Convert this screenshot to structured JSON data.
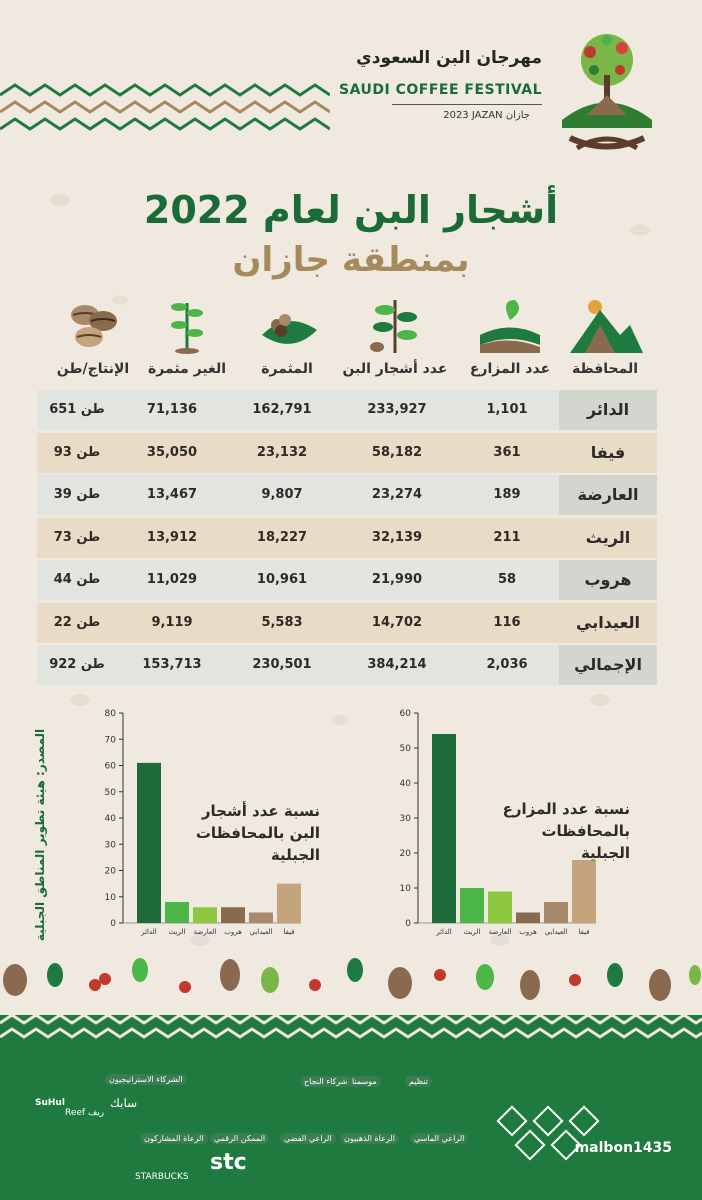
{
  "header": {
    "logo_arabic": "مهرجان البن السعودي",
    "logo_english": "SAUDI COFFEE FESTIVAL",
    "logo_sub": "2023 JAZAN  جازان"
  },
  "title": {
    "line1": "أشجار البن لعام 2022",
    "line2": "بمنطقة جازان"
  },
  "table": {
    "columns": [
      "المحافظة",
      "عدد المزارع",
      "عدد أشجار البن",
      "المثمرة",
      "الغير مثمرة",
      "الإنتاج/طن"
    ],
    "rows": [
      {
        "gov": "الدائر",
        "farms": "1,101",
        "trees": "233,927",
        "fruitful": "162,791",
        "nonfruitful": "71,136",
        "production": "651 طن"
      },
      {
        "gov": "فيفا",
        "farms": "361",
        "trees": "58,182",
        "fruitful": "23,132",
        "nonfruitful": "35,050",
        "production": "93 طن"
      },
      {
        "gov": "العارضة",
        "farms": "189",
        "trees": "23,274",
        "fruitful": "9,807",
        "nonfruitful": "13,467",
        "production": "39 طن"
      },
      {
        "gov": "الريث",
        "farms": "211",
        "trees": "32,139",
        "fruitful": "18,227",
        "nonfruitful": "13,912",
        "production": "73 طن"
      },
      {
        "gov": "هروب",
        "farms": "58",
        "trees": "21,990",
        "fruitful": "10,961",
        "nonfruitful": "11,029",
        "production": "44 طن"
      },
      {
        "gov": "العيدابي",
        "farms": "116",
        "trees": "14,702",
        "fruitful": "5,583",
        "nonfruitful": "9,119",
        "production": "22 طن"
      },
      {
        "gov": "الإجمالي",
        "farms": "2,036",
        "trees": "384,214",
        "fruitful": "230,501",
        "nonfruitful": "153,713",
        "production": "922 طن"
      }
    ]
  },
  "source": "المصدر: هيئة تطوير المناطق الجبلية",
  "chart_data": [
    {
      "type": "bar",
      "title": "نسبة عدد أشجار البن بالمحافظات الجبلية",
      "categories": [
        "الدائر",
        "الريث",
        "العارضة",
        "هروب",
        "العيدابي",
        "فيفا"
      ],
      "values": [
        61,
        8,
        6,
        6,
        4,
        15
      ],
      "colors": [
        "#1e6b3a",
        "#4cb648",
        "#8dc63f",
        "#8a6a4e",
        "#a8896a",
        "#c4a47c"
      ],
      "ylim": [
        0,
        80
      ],
      "yticks": [
        0,
        10,
        20,
        30,
        40,
        50,
        60,
        70,
        80
      ]
    },
    {
      "type": "bar",
      "title": "نسبة عدد المزارع بالمحافظات الجبلية",
      "categories": [
        "الدائر",
        "الريث",
        "العارضة",
        "هروب",
        "العيدابي",
        "فيفا"
      ],
      "values": [
        54,
        10,
        9,
        3,
        6,
        18
      ],
      "colors": [
        "#1e6b3a",
        "#4cb648",
        "#8dc63f",
        "#8a6a4e",
        "#a8896a",
        "#c4a47c"
      ],
      "ylim": [
        0,
        60
      ],
      "yticks": [
        0,
        10,
        20,
        30,
        40,
        50,
        60
      ]
    }
  ],
  "footer": {
    "handle": "malbon1435",
    "tags": [
      "تنظيم",
      "موسمنا",
      "شركاء النجاح",
      "الشركاء الاستراتيجيون",
      "الراعي الماسي",
      "الرعاة الذهبيون",
      "الراعي الفضي",
      "الممكن الرقمي",
      "الرعاة المشاركون"
    ],
    "brands": [
      "stc",
      "STARBUCKS",
      "Reef ريف",
      "SuHul",
      "سابك"
    ]
  }
}
